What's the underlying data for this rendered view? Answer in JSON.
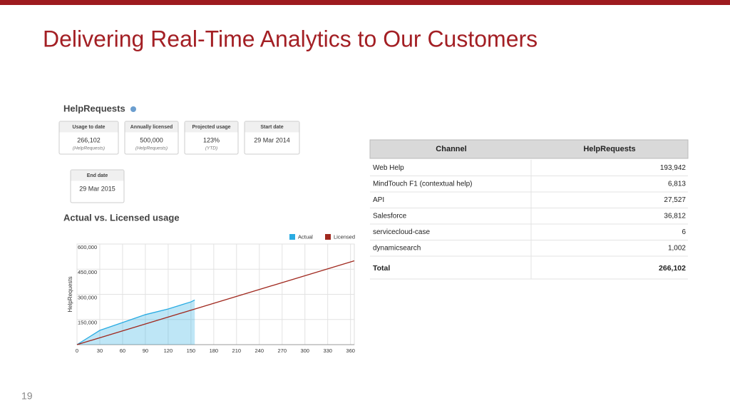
{
  "slide": {
    "title": "Delivering Real-Time Analytics to Our Customers",
    "page_number": "19"
  },
  "dashboard": {
    "title": "HelpRequests",
    "cards": [
      {
        "label": "Usage to date",
        "value": "266,102",
        "note": "(HelpRequests)"
      },
      {
        "label": "Annually licensed",
        "value": "500,000",
        "note": "(HelpRequests)"
      },
      {
        "label": "Projected usage",
        "value": "123%",
        "note": "(YTD)"
      },
      {
        "label": "Start date",
        "value": "29 Mar 2014"
      },
      {
        "label": "End date",
        "value": "29 Mar 2015"
      }
    ],
    "chart_title": "Actual vs. Licensed usage"
  },
  "chart_data": {
    "type": "line",
    "y_label": "HelpRequests",
    "xlim": [
      0,
      365
    ],
    "xticks": [
      0,
      30,
      60,
      90,
      120,
      150,
      180,
      210,
      240,
      270,
      300,
      330,
      360
    ],
    "ylim": [
      0,
      600000
    ],
    "yticks": [
      {
        "value": 150000,
        "label": "150,000"
      },
      {
        "value": 300000,
        "label": "300,000"
      },
      {
        "value": 450000,
        "label": "450,000"
      },
      {
        "value": 600000,
        "label": "600,000"
      }
    ],
    "grid": true,
    "legend": "top-right",
    "series": [
      {
        "name": "Actual",
        "color": "#29abe2",
        "fill": true,
        "x": [
          0,
          30,
          60,
          90,
          120,
          150,
          155
        ],
        "values": [
          0,
          85000,
          132000,
          179000,
          213000,
          255000,
          266102
        ]
      },
      {
        "name": "Licensed",
        "color": "#a0281e",
        "fill": false,
        "x": [
          0,
          365
        ],
        "values": [
          0,
          500000
        ]
      }
    ]
  },
  "table": {
    "header": [
      "Channel",
      "HelpRequests"
    ],
    "rows": [
      [
        "Web Help",
        "193,942"
      ],
      [
        "MindTouch F1 (contextual help)",
        "6,813"
      ],
      [
        "API",
        "27,527"
      ],
      [
        "Salesforce",
        "36,812"
      ],
      [
        "servicecloud-case",
        "6"
      ],
      [
        "dynamicsearch",
        "1,002"
      ]
    ],
    "total": [
      "Total",
      "266,102"
    ]
  }
}
